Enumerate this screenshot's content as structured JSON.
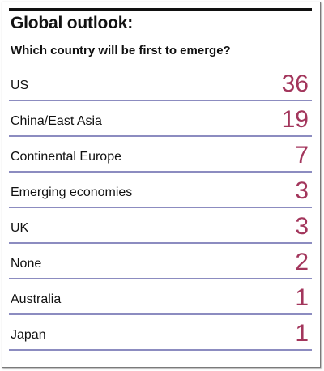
{
  "chart_data": {
    "type": "table",
    "title": "Global outlook:",
    "subtitle": "Which country will be first to emerge?",
    "categories": [
      "US",
      "China/East Asia",
      "Continental Europe",
      "Emerging economies",
      "UK",
      "None",
      "Australia",
      "Japan"
    ],
    "values": [
      36,
      19,
      7,
      3,
      3,
      2,
      1,
      1
    ]
  },
  "colors": {
    "value": "#a3365c",
    "rule": "#8c8cc0",
    "text": "#111111"
  }
}
